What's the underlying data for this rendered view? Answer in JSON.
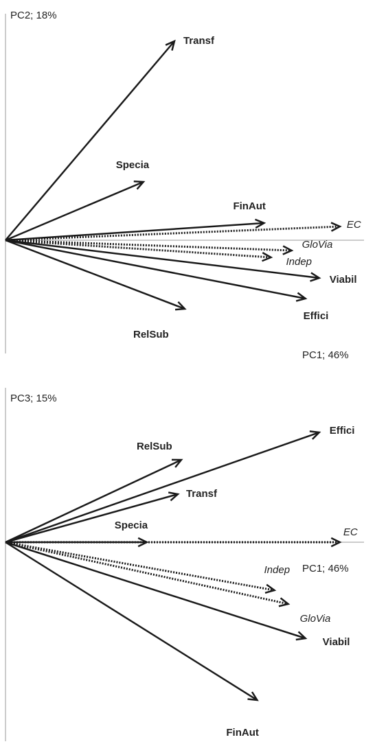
{
  "chart_data": [
    {
      "type": "biplot",
      "xlabel": "PC1; 46%",
      "ylabel": "PC2; 18%",
      "xlim": [
        0,
        1.04
      ],
      "ylim": [
        -0.33,
        0.66
      ],
      "color": "#1a1a1a",
      "vectors": [
        {
          "name": "Transf",
          "x": 0.49,
          "y": 0.58,
          "style": "solid"
        },
        {
          "name": "Specia",
          "x": 0.4,
          "y": 0.17,
          "style": "solid"
        },
        {
          "name": "FinAut",
          "x": 0.75,
          "y": 0.05,
          "style": "solid"
        },
        {
          "name": "EC",
          "x": 0.97,
          "y": 0.04,
          "style": "dotted"
        },
        {
          "name": "GloVia",
          "x": 0.83,
          "y": -0.03,
          "style": "dotted"
        },
        {
          "name": "Indep",
          "x": 0.77,
          "y": -0.05,
          "style": "dotted"
        },
        {
          "name": "Viabil",
          "x": 0.91,
          "y": -0.11,
          "style": "solid"
        },
        {
          "name": "Effici",
          "x": 0.87,
          "y": -0.17,
          "style": "solid"
        },
        {
          "name": "RelSub",
          "x": 0.52,
          "y": -0.2,
          "style": "solid"
        }
      ]
    },
    {
      "type": "biplot",
      "xlabel": "PC1; 46%",
      "ylabel": "PC3; 15%",
      "xlim": [
        0,
        1.04
      ],
      "ylim": [
        -0.58,
        0.45
      ],
      "color": "#1a1a1a",
      "vectors": [
        {
          "name": "Effici",
          "x": 0.91,
          "y": 0.32,
          "style": "solid"
        },
        {
          "name": "RelSub",
          "x": 0.51,
          "y": 0.24,
          "style": "solid"
        },
        {
          "name": "Transf",
          "x": 0.5,
          "y": 0.14,
          "style": "solid"
        },
        {
          "name": "Specia",
          "x": 0.41,
          "y": 0.0,
          "style": "solid"
        },
        {
          "name": "EC",
          "x": 0.97,
          "y": 0.0,
          "style": "dotted"
        },
        {
          "name": "Indep",
          "x": 0.78,
          "y": -0.14,
          "style": "dotted"
        },
        {
          "name": "GloVia",
          "x": 0.82,
          "y": -0.18,
          "style": "dotted"
        },
        {
          "name": "Viabil",
          "x": 0.87,
          "y": -0.28,
          "style": "solid"
        },
        {
          "name": "FinAut",
          "x": 0.73,
          "y": -0.46,
          "style": "solid"
        }
      ]
    }
  ]
}
